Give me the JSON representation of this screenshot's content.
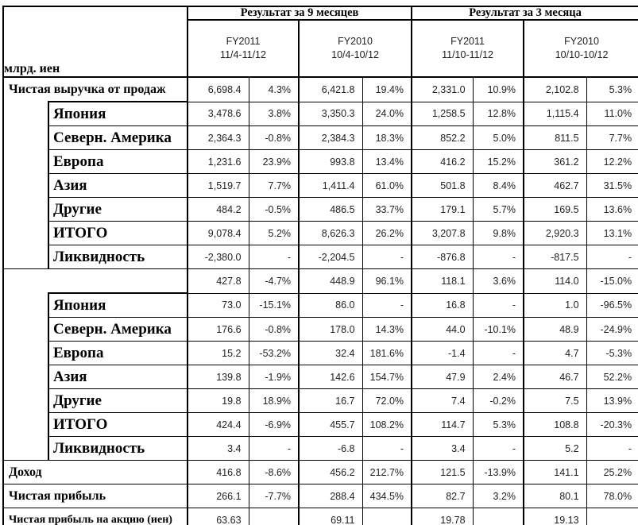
{
  "unit_label": "млрд. иен",
  "header": {
    "group_9m": "Результат за 9 месяцев",
    "group_3m": "Результат за 3 месяца",
    "cols": [
      {
        "fy": "FY2011",
        "period": "11/4-11/12"
      },
      {
        "fy": "FY2010",
        "period": "10/4-10/12"
      },
      {
        "fy": "FY2011",
        "period": "11/10-11/12"
      },
      {
        "fy": "FY2010",
        "period": "10/10-10/12"
      }
    ]
  },
  "rows": [
    {
      "label": "Чистая выручка от продаж",
      "indent": false,
      "values": [
        "6,698.4",
        "4.3%",
        "6,421.8",
        "19.4%",
        "2,331.0",
        "10.9%",
        "2,102.8",
        "5.3%"
      ]
    },
    {
      "label": "Япония",
      "indent": true,
      "values": [
        "3,478.6",
        "3.8%",
        "3,350.3",
        "24.0%",
        "1,258.5",
        "12.8%",
        "1,115.4",
        "11.0%"
      ]
    },
    {
      "label": "Северн. Америка",
      "indent": true,
      "values": [
        "2,364.3",
        "-0.8%",
        "2,384.3",
        "18.3%",
        "852.2",
        "5.0%",
        "811.5",
        "7.7%"
      ]
    },
    {
      "label": "Европа",
      "indent": true,
      "values": [
        "1,231.6",
        "23.9%",
        "993.8",
        "13.4%",
        "416.2",
        "15.2%",
        "361.2",
        "12.2%"
      ]
    },
    {
      "label": "Азия",
      "indent": true,
      "values": [
        "1,519.7",
        "7.7%",
        "1,411.4",
        "61.0%",
        "501.8",
        "8.4%",
        "462.7",
        "31.5%"
      ]
    },
    {
      "label": "Другие",
      "indent": true,
      "values": [
        "484.2",
        "-0.5%",
        "486.5",
        "33.7%",
        "179.1",
        "5.7%",
        "169.5",
        "13.6%"
      ]
    },
    {
      "label": "ИТОГО",
      "indent": true,
      "values": [
        "9,078.4",
        "5.2%",
        "8,626.3",
        "26.2%",
        "3,207.8",
        "9.8%",
        "2,920.3",
        "13.1%"
      ]
    },
    {
      "label": "Ликвидность",
      "indent": true,
      "values": [
        "-2,380.0",
        "-",
        "-2,204.5",
        "-",
        "-876.8",
        "-",
        "-817.5",
        "-"
      ]
    },
    {
      "label": "",
      "indent": false,
      "values": [
        "427.8",
        "-4.7%",
        "448.9",
        "96.1%",
        "118.1",
        "3.6%",
        "114.0",
        "-15.0%"
      ]
    },
    {
      "label": "Япония",
      "indent": true,
      "values": [
        "73.0",
        "-15.1%",
        "86.0",
        "-",
        "16.8",
        "-",
        "1.0",
        "-96.5%"
      ]
    },
    {
      "label": "Северн. Америка",
      "indent": true,
      "values": [
        "176.6",
        "-0.8%",
        "178.0",
        "14.3%",
        "44.0",
        "-10.1%",
        "48.9",
        "-24.9%"
      ]
    },
    {
      "label": "Европа",
      "indent": true,
      "values": [
        "15.2",
        "-53.2%",
        "32.4",
        "181.6%",
        "-1.4",
        "-",
        "4.7",
        "-5.3%"
      ]
    },
    {
      "label": "Азия",
      "indent": true,
      "values": [
        "139.8",
        "-1.9%",
        "142.6",
        "154.7%",
        "47.9",
        "2.4%",
        "46.7",
        "52.2%"
      ]
    },
    {
      "label": "Другие",
      "indent": true,
      "values": [
        "19.8",
        "18.9%",
        "16.7",
        "72.0%",
        "7.4",
        "-0.2%",
        "7.5",
        "13.9%"
      ]
    },
    {
      "label": "ИТОГО",
      "indent": true,
      "values": [
        "424.4",
        "-6.9%",
        "455.7",
        "108.2%",
        "114.7",
        "5.3%",
        "108.8",
        "-20.3%"
      ]
    },
    {
      "label": "Ликвидность",
      "indent": true,
      "values": [
        "3.4",
        "-",
        "-6.8",
        "-",
        "3.4",
        "-",
        "5.2",
        "-"
      ]
    },
    {
      "label": "Доход",
      "indent": false,
      "values": [
        "416.8",
        "-8.6%",
        "456.2",
        "212.7%",
        "121.5",
        "-13.9%",
        "141.1",
        "25.2%"
      ]
    },
    {
      "label": "Чистая прибыль",
      "indent": false,
      "values": [
        "266.1",
        "-7.7%",
        "288.4",
        "434.5%",
        "82.7",
        "3.2%",
        "80.1",
        "78.0%"
      ]
    },
    {
      "label": "Чистая прибыль на акцию (иен)",
      "indent": false,
      "values": [
        "63.63",
        "",
        "69.11",
        "",
        "19.78",
        "",
        "19.13",
        ""
      ]
    }
  ]
}
